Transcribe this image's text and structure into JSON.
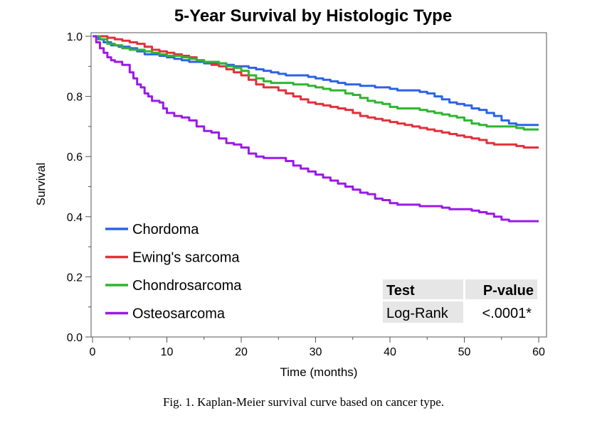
{
  "chart_data": {
    "type": "line",
    "title": "5-Year Survival by Histologic Type",
    "xlabel": "Time (months)",
    "ylabel": "Survival",
    "xlim": [
      0,
      60
    ],
    "ylim": [
      0,
      1
    ],
    "x_ticks": [
      0,
      10,
      20,
      30,
      40,
      50,
      60
    ],
    "y_ticks": [
      0.0,
      0.2,
      0.4,
      0.6,
      0.8,
      1.0
    ],
    "x_tick_labels": [
      "0",
      "10",
      "20",
      "30",
      "40",
      "50",
      "60"
    ],
    "y_tick_labels": [
      "0.0",
      "0.2",
      "0.4",
      "0.6",
      "0.8",
      "1.0"
    ],
    "grid": false,
    "legend_position": "bottom-left",
    "series": [
      {
        "name": "Chordoma",
        "color": "#2b63e6",
        "points": [
          [
            0,
            1.0
          ],
          [
            0.8,
            0.99
          ],
          [
            1.5,
            0.98
          ],
          [
            2.5,
            0.97
          ],
          [
            3.5,
            0.965
          ],
          [
            5,
            0.96
          ],
          [
            6,
            0.95
          ],
          [
            7,
            0.94
          ],
          [
            8.5,
            0.94
          ],
          [
            9,
            0.935
          ],
          [
            10,
            0.93
          ],
          [
            11,
            0.925
          ],
          [
            12,
            0.92
          ],
          [
            13,
            0.915
          ],
          [
            15,
            0.91
          ],
          [
            17,
            0.91
          ],
          [
            18,
            0.905
          ],
          [
            19,
            0.9
          ],
          [
            20,
            0.9
          ],
          [
            21,
            0.895
          ],
          [
            22,
            0.89
          ],
          [
            23,
            0.885
          ],
          [
            24,
            0.88
          ],
          [
            25,
            0.875
          ],
          [
            26,
            0.87
          ],
          [
            29,
            0.865
          ],
          [
            30,
            0.86
          ],
          [
            31,
            0.855
          ],
          [
            32,
            0.85
          ],
          [
            33,
            0.845
          ],
          [
            34,
            0.84
          ],
          [
            36,
            0.835
          ],
          [
            38,
            0.83
          ],
          [
            40,
            0.825
          ],
          [
            41,
            0.82
          ],
          [
            44,
            0.815
          ],
          [
            45,
            0.81
          ],
          [
            46,
            0.8
          ],
          [
            47,
            0.79
          ],
          [
            48,
            0.78
          ],
          [
            49,
            0.775
          ],
          [
            50,
            0.77
          ],
          [
            51,
            0.76
          ],
          [
            52,
            0.755
          ],
          [
            53,
            0.745
          ],
          [
            54,
            0.735
          ],
          [
            55,
            0.72
          ],
          [
            56,
            0.71
          ],
          [
            57,
            0.705
          ],
          [
            60,
            0.705
          ]
        ]
      },
      {
        "name": "Ewing's sarcoma",
        "color": "#e3303a",
        "points": [
          [
            0,
            1.0
          ],
          [
            1,
            1.0
          ],
          [
            2,
            0.995
          ],
          [
            3,
            0.99
          ],
          [
            4,
            0.985
          ],
          [
            5,
            0.98
          ],
          [
            6,
            0.975
          ],
          [
            7,
            0.965
          ],
          [
            8,
            0.955
          ],
          [
            9,
            0.95
          ],
          [
            10,
            0.945
          ],
          [
            11,
            0.94
          ],
          [
            12,
            0.935
          ],
          [
            13,
            0.93
          ],
          [
            14,
            0.92
          ],
          [
            15,
            0.915
          ],
          [
            16,
            0.905
          ],
          [
            17,
            0.9
          ],
          [
            18,
            0.89
          ],
          [
            19,
            0.88
          ],
          [
            20,
            0.87
          ],
          [
            21,
            0.855
          ],
          [
            22,
            0.84
          ],
          [
            23,
            0.83
          ],
          [
            25,
            0.82
          ],
          [
            26,
            0.81
          ],
          [
            27,
            0.8
          ],
          [
            28,
            0.79
          ],
          [
            29,
            0.78
          ],
          [
            30,
            0.775
          ],
          [
            31,
            0.77
          ],
          [
            32,
            0.765
          ],
          [
            33,
            0.76
          ],
          [
            34,
            0.755
          ],
          [
            35,
            0.745
          ],
          [
            36,
            0.735
          ],
          [
            37,
            0.73
          ],
          [
            38,
            0.725
          ],
          [
            39,
            0.72
          ],
          [
            40,
            0.715
          ],
          [
            41,
            0.71
          ],
          [
            42,
            0.705
          ],
          [
            43,
            0.7
          ],
          [
            44,
            0.695
          ],
          [
            45,
            0.69
          ],
          [
            46,
            0.685
          ],
          [
            47,
            0.68
          ],
          [
            48,
            0.675
          ],
          [
            49,
            0.67
          ],
          [
            50,
            0.665
          ],
          [
            51,
            0.66
          ],
          [
            52,
            0.655
          ],
          [
            53,
            0.645
          ],
          [
            54,
            0.64
          ],
          [
            57,
            0.635
          ],
          [
            58,
            0.63
          ],
          [
            60,
            0.63
          ]
        ]
      },
      {
        "name": "Chondrosarcoma",
        "color": "#2fb52f",
        "points": [
          [
            0,
            1.0
          ],
          [
            1,
            0.99
          ],
          [
            2,
            0.975
          ],
          [
            3,
            0.97
          ],
          [
            4,
            0.96
          ],
          [
            5,
            0.955
          ],
          [
            6,
            0.955
          ],
          [
            7,
            0.95
          ],
          [
            8,
            0.945
          ],
          [
            9,
            0.94
          ],
          [
            10,
            0.935
          ],
          [
            12,
            0.93
          ],
          [
            13,
            0.925
          ],
          [
            14,
            0.92
          ],
          [
            15,
            0.915
          ],
          [
            17,
            0.91
          ],
          [
            18,
            0.9
          ],
          [
            19,
            0.895
          ],
          [
            20,
            0.885
          ],
          [
            21,
            0.87
          ],
          [
            22,
            0.86
          ],
          [
            23,
            0.85
          ],
          [
            24,
            0.845
          ],
          [
            27,
            0.84
          ],
          [
            29,
            0.835
          ],
          [
            30,
            0.83
          ],
          [
            31,
            0.825
          ],
          [
            32,
            0.82
          ],
          [
            34,
            0.81
          ],
          [
            35,
            0.805
          ],
          [
            36,
            0.795
          ],
          [
            37,
            0.785
          ],
          [
            38,
            0.78
          ],
          [
            39,
            0.775
          ],
          [
            40,
            0.765
          ],
          [
            41,
            0.76
          ],
          [
            44,
            0.755
          ],
          [
            45,
            0.75
          ],
          [
            46,
            0.745
          ],
          [
            47,
            0.74
          ],
          [
            48,
            0.735
          ],
          [
            49,
            0.73
          ],
          [
            50,
            0.72
          ],
          [
            51,
            0.71
          ],
          [
            52,
            0.705
          ],
          [
            53,
            0.7
          ],
          [
            57,
            0.695
          ],
          [
            58,
            0.69
          ],
          [
            60,
            0.69
          ]
        ]
      },
      {
        "name": "Osteosarcoma",
        "color": "#9b19e6",
        "points": [
          [
            0,
            1.0
          ],
          [
            0.5,
            0.98
          ],
          [
            1,
            0.96
          ],
          [
            1.5,
            0.945
          ],
          [
            2,
            0.93
          ],
          [
            2.5,
            0.92
          ],
          [
            3,
            0.915
          ],
          [
            4,
            0.905
          ],
          [
            5,
            0.88
          ],
          [
            5.5,
            0.86
          ],
          [
            6,
            0.84
          ],
          [
            6.5,
            0.83
          ],
          [
            7,
            0.81
          ],
          [
            7.5,
            0.8
          ],
          [
            8,
            0.785
          ],
          [
            9,
            0.78
          ],
          [
            9.5,
            0.76
          ],
          [
            10,
            0.745
          ],
          [
            11,
            0.735
          ],
          [
            12,
            0.73
          ],
          [
            13,
            0.72
          ],
          [
            14,
            0.7
          ],
          [
            15,
            0.685
          ],
          [
            16,
            0.68
          ],
          [
            17,
            0.66
          ],
          [
            18,
            0.645
          ],
          [
            19,
            0.64
          ],
          [
            20,
            0.63
          ],
          [
            21,
            0.61
          ],
          [
            22,
            0.6
          ],
          [
            23,
            0.595
          ],
          [
            25,
            0.595
          ],
          [
            26,
            0.585
          ],
          [
            27,
            0.57
          ],
          [
            28,
            0.56
          ],
          [
            29,
            0.55
          ],
          [
            30,
            0.54
          ],
          [
            31,
            0.53
          ],
          [
            32,
            0.52
          ],
          [
            33,
            0.51
          ],
          [
            34,
            0.5
          ],
          [
            35,
            0.49
          ],
          [
            36,
            0.48
          ],
          [
            37,
            0.475
          ],
          [
            38,
            0.46
          ],
          [
            39,
            0.455
          ],
          [
            40,
            0.445
          ],
          [
            41,
            0.44
          ],
          [
            43,
            0.44
          ],
          [
            44,
            0.435
          ],
          [
            45,
            0.435
          ],
          [
            46,
            0.435
          ],
          [
            47,
            0.43
          ],
          [
            48,
            0.425
          ],
          [
            50,
            0.425
          ],
          [
            51,
            0.42
          ],
          [
            52,
            0.415
          ],
          [
            53,
            0.41
          ],
          [
            54,
            0.4
          ],
          [
            55,
            0.39
          ],
          [
            56,
            0.385
          ],
          [
            60,
            0.385
          ]
        ]
      }
    ]
  },
  "stats_table": {
    "headers": [
      "Test",
      "P-value"
    ],
    "row": [
      "Log-Rank",
      "<.0001*"
    ],
    "pvalue_color": "#e87722",
    "header_bg": "#e6e6e6",
    "cell_bg": "#e6e6e6"
  },
  "caption": "Fig.  1.  Kaplan-Meier survival curve based on cancer type."
}
